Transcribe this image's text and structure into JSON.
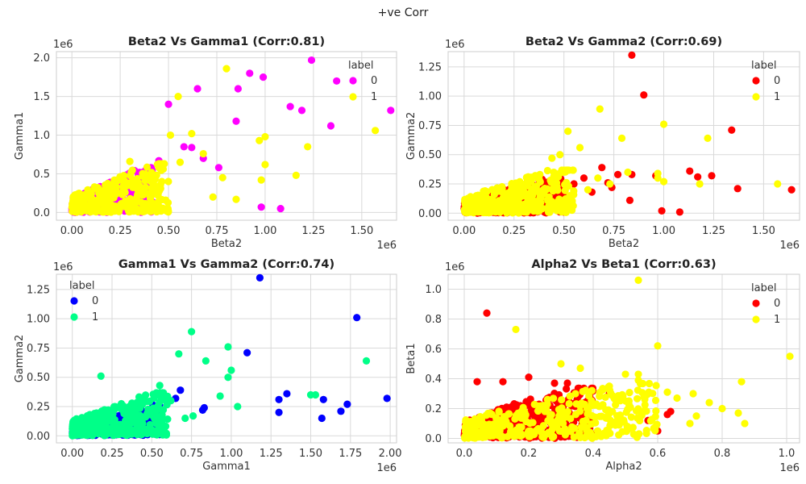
{
  "figure_title": "+ve Corr",
  "chart_data": [
    {
      "type": "scatter",
      "title": "Beta2 Vs Gamma1 (Corr:0.81)",
      "xlabel": "Beta2",
      "ylabel": "Gamma1",
      "x_multiplier": "1e6",
      "y_multiplier": "1e6",
      "xlim": [
        -0.08,
        1.68
      ],
      "ylim": [
        -0.1,
        2.08
      ],
      "xticks": [
        0,
        0.25,
        0.5,
        0.75,
        1.0,
        1.25,
        1.5
      ],
      "xtick_labels": [
        "0.00",
        "0.25",
        "0.50",
        "0.75",
        "1.00",
        "1.25",
        "1.50"
      ],
      "yticks": [
        0,
        0.5,
        1.0,
        1.5,
        2.0
      ],
      "ytick_labels": [
        "0.0",
        "0.5",
        "1.0",
        "1.5",
        "2.0"
      ],
      "legend_title": "label",
      "legend_position": "top-right",
      "series": [
        {
          "name": "0",
          "color": "#ff00ff",
          "seed": 11,
          "cluster": {
            "n": 420,
            "xmax": 0.42,
            "ymax": 0.52
          },
          "points": [
            [
              0.92,
              1.8
            ],
            [
              0.99,
              1.75
            ],
            [
              1.24,
              1.97
            ],
            [
              1.37,
              1.7
            ],
            [
              0.65,
              1.6
            ],
            [
              0.86,
              1.6
            ],
            [
              0.5,
              1.4
            ],
            [
              1.13,
              1.37
            ],
            [
              1.19,
              1.32
            ],
            [
              1.65,
              1.32
            ],
            [
              1.34,
              1.12
            ],
            [
              0.85,
              1.18
            ],
            [
              0.58,
              0.85
            ],
            [
              0.62,
              0.84
            ],
            [
              0.68,
              0.7
            ],
            [
              0.76,
              0.58
            ],
            [
              0.98,
              0.07
            ],
            [
              1.08,
              0.05
            ],
            [
              0.45,
              0.67
            ],
            [
              0.41,
              0.58
            ]
          ]
        },
        {
          "name": "1",
          "color": "#ffff00",
          "seed": 23,
          "cluster": {
            "n": 330,
            "xmax": 0.5,
            "ymax": 0.6
          },
          "points": [
            [
              0.8,
              1.86
            ],
            [
              0.55,
              1.5
            ],
            [
              1.57,
              1.06
            ],
            [
              1.0,
              0.98
            ],
            [
              0.97,
              0.93
            ],
            [
              0.51,
              1.0
            ],
            [
              0.62,
              1.02
            ],
            [
              1.22,
              0.85
            ],
            [
              0.68,
              0.76
            ],
            [
              1.0,
              0.62
            ],
            [
              0.78,
              0.45
            ],
            [
              1.16,
              0.48
            ],
            [
              0.85,
              0.17
            ],
            [
              0.98,
              0.42
            ],
            [
              0.73,
              0.2
            ],
            [
              0.3,
              0.66
            ],
            [
              0.45,
              0.6
            ],
            [
              0.56,
              0.65
            ]
          ]
        }
      ]
    },
    {
      "type": "scatter",
      "title": "Beta2 Vs Gamma2 (Corr:0.69)",
      "xlabel": "Beta2",
      "ylabel": "Gamma2",
      "x_multiplier": "1e6",
      "y_multiplier": "1e6",
      "xlim": [
        -0.08,
        1.68
      ],
      "ylim": [
        -0.06,
        1.38
      ],
      "xticks": [
        0,
        0.25,
        0.5,
        0.75,
        1.0,
        1.25,
        1.5
      ],
      "xtick_labels": [
        "0.00",
        "0.25",
        "0.50",
        "0.75",
        "1.00",
        "1.25",
        "1.50"
      ],
      "yticks": [
        0,
        0.25,
        0.5,
        0.75,
        1.0,
        1.25
      ],
      "ytick_labels": [
        "0.00",
        "0.25",
        "0.50",
        "0.75",
        "1.00",
        "1.25"
      ],
      "legend_title": "label",
      "legend_position": "top-right",
      "series": [
        {
          "name": "0",
          "color": "#ff0000",
          "seed": 37,
          "cluster": {
            "n": 360,
            "xmax": 0.5,
            "ymax": 0.28
          },
          "points": [
            [
              0.84,
              1.35
            ],
            [
              0.9,
              1.01
            ],
            [
              1.34,
              0.71
            ],
            [
              0.69,
              0.39
            ],
            [
              0.77,
              0.33
            ],
            [
              0.84,
              0.33
            ],
            [
              0.96,
              0.32
            ],
            [
              1.13,
              0.36
            ],
            [
              1.17,
              0.31
            ],
            [
              1.24,
              0.32
            ],
            [
              1.37,
              0.21
            ],
            [
              1.64,
              0.2
            ],
            [
              0.72,
              0.26
            ],
            [
              0.74,
              0.22
            ],
            [
              0.83,
              0.11
            ],
            [
              0.99,
              0.02
            ],
            [
              1.08,
              0.01
            ],
            [
              0.6,
              0.3
            ],
            [
              0.55,
              0.25
            ],
            [
              0.47,
              0.32
            ],
            [
              0.64,
              0.18
            ]
          ]
        },
        {
          "name": "1",
          "color": "#ffff00",
          "seed": 41,
          "cluster": {
            "n": 340,
            "xmax": 0.55,
            "ymax": 0.35
          },
          "points": [
            [
              0.68,
              0.89
            ],
            [
              1.0,
              0.76
            ],
            [
              0.79,
              0.64
            ],
            [
              1.22,
              0.64
            ],
            [
              0.52,
              0.7
            ],
            [
              0.58,
              0.56
            ],
            [
              0.48,
              0.5
            ],
            [
              0.97,
              0.34
            ],
            [
              0.97,
              0.3
            ],
            [
              0.82,
              0.35
            ],
            [
              1.18,
              0.25
            ],
            [
              1.57,
              0.25
            ],
            [
              0.73,
              0.25
            ],
            [
              0.62,
              0.2
            ],
            [
              0.67,
              0.3
            ],
            [
              1.0,
              0.27
            ],
            [
              0.44,
              0.47
            ]
          ]
        }
      ]
    },
    {
      "type": "scatter",
      "title": "Gamma1 Vs Gamma2 (Corr:0.74)",
      "xlabel": "Gamma1",
      "ylabel": "Gamma2",
      "x_multiplier": "1e6",
      "y_multiplier": "1e6",
      "xlim": [
        -0.1,
        2.04
      ],
      "ylim": [
        -0.06,
        1.38
      ],
      "xticks": [
        0,
        0.25,
        0.5,
        0.75,
        1.0,
        1.25,
        1.5,
        1.75,
        2.0
      ],
      "xtick_labels": [
        "0.00",
        "0.25",
        "0.50",
        "0.75",
        "1.00",
        "1.25",
        "1.50",
        "1.75",
        "2.00"
      ],
      "yticks": [
        0,
        0.25,
        0.5,
        0.75,
        1.0,
        1.25
      ],
      "ytick_labels": [
        "0.00",
        "0.25",
        "0.50",
        "0.75",
        "1.00",
        "1.25"
      ],
      "legend_title": "label",
      "legend_position": "top-left",
      "series": [
        {
          "name": "0",
          "color": "#0000ff",
          "seed": 53,
          "cluster": {
            "n": 380,
            "xmax": 0.55,
            "ymax": 0.25
          },
          "points": [
            [
              1.18,
              1.35
            ],
            [
              1.79,
              1.01
            ],
            [
              1.1,
              0.71
            ],
            [
              0.68,
              0.39
            ],
            [
              0.65,
              0.32
            ],
            [
              0.83,
              0.24
            ],
            [
              1.3,
              0.31
            ],
            [
              1.35,
              0.36
            ],
            [
              1.3,
              0.2
            ],
            [
              1.58,
              0.31
            ],
            [
              1.57,
              0.15
            ],
            [
              1.73,
              0.27
            ],
            [
              1.98,
              0.32
            ],
            [
              1.69,
              0.21
            ],
            [
              0.82,
              0.22
            ],
            [
              0.6,
              0.3
            ]
          ]
        },
        {
          "name": "1",
          "color": "#00ff88",
          "seed": 67,
          "cluster": {
            "n": 360,
            "xmax": 0.6,
            "ymax": 0.35
          },
          "points": [
            [
              0.75,
              0.89
            ],
            [
              0.98,
              0.76
            ],
            [
              1.85,
              0.64
            ],
            [
              0.67,
              0.7
            ],
            [
              0.84,
              0.64
            ],
            [
              1.0,
              0.56
            ],
            [
              0.98,
              0.5
            ],
            [
              0.55,
              0.43
            ],
            [
              1.5,
              0.35
            ],
            [
              1.53,
              0.35
            ],
            [
              0.93,
              0.34
            ],
            [
              1.04,
              0.25
            ],
            [
              0.76,
              0.17
            ],
            [
              0.62,
              0.3
            ],
            [
              0.71,
              0.15
            ],
            [
              0.18,
              0.51
            ]
          ]
        }
      ]
    },
    {
      "type": "scatter",
      "title": "Alpha2 Vs Beta1 (Corr:0.63)",
      "xlabel": "Alpha2",
      "ylabel": "Beta1",
      "x_multiplier": "1e6",
      "y_multiplier": "1e6",
      "xlim": [
        -0.05,
        1.04
      ],
      "ylim": [
        -0.03,
        1.1
      ],
      "xticks": [
        0,
        0.2,
        0.4,
        0.6,
        0.8,
        1.0
      ],
      "xtick_labels": [
        "0.0",
        "0.2",
        "0.4",
        "0.6",
        "0.8",
        "1.0"
      ],
      "yticks": [
        0,
        0.2,
        0.4,
        0.6,
        0.8,
        1.0
      ],
      "ytick_labels": [
        "0.0",
        "0.2",
        "0.4",
        "0.6",
        "0.8",
        "1.0"
      ],
      "legend_title": "label",
      "legend_position": "top-right",
      "series": [
        {
          "name": "0",
          "color": "#ff0000",
          "seed": 79,
          "cluster": {
            "n": 420,
            "xmax": 0.4,
            "ymax": 0.32
          },
          "points": [
            [
              0.07,
              0.84
            ],
            [
              0.04,
              0.38
            ],
            [
              0.12,
              0.38
            ],
            [
              0.2,
              0.41
            ],
            [
              0.28,
              0.37
            ],
            [
              0.32,
              0.37
            ],
            [
              0.57,
              0.12
            ],
            [
              0.63,
              0.16
            ],
            [
              0.64,
              0.18
            ],
            [
              0.6,
              0.05
            ],
            [
              0.35,
              0.26
            ],
            [
              0.45,
              0.3
            ],
            [
              0.38,
              0.2
            ]
          ]
        },
        {
          "name": "1",
          "color": "#ffff00",
          "seed": 83,
          "cluster": {
            "n": 360,
            "xmax": 0.6,
            "ymax": 0.35
          },
          "points": [
            [
              0.54,
              1.06
            ],
            [
              0.16,
              0.73
            ],
            [
              0.6,
              0.62
            ],
            [
              1.01,
              0.55
            ],
            [
              0.5,
              0.43
            ],
            [
              0.54,
              0.43
            ],
            [
              0.54,
              0.39
            ],
            [
              0.86,
              0.38
            ],
            [
              0.63,
              0.31
            ],
            [
              0.66,
              0.27
            ],
            [
              0.71,
              0.3
            ],
            [
              0.76,
              0.24
            ],
            [
              0.8,
              0.2
            ],
            [
              0.85,
              0.17
            ],
            [
              0.87,
              0.1
            ],
            [
              0.72,
              0.15
            ],
            [
              0.7,
              0.1
            ],
            [
              0.45,
              0.35
            ],
            [
              0.36,
              0.47
            ],
            [
              0.3,
              0.5
            ]
          ]
        }
      ]
    }
  ]
}
